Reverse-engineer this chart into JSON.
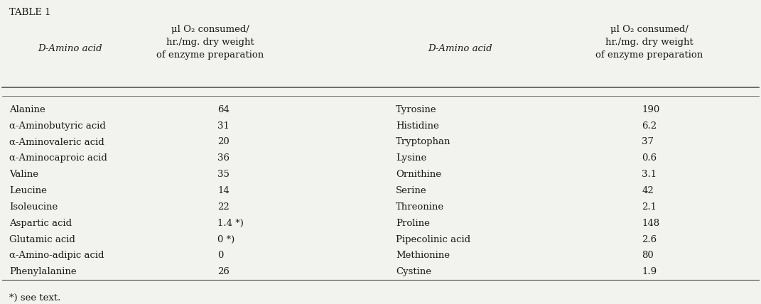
{
  "title": "TABLE 1",
  "col1_header1": "D-Amino acid",
  "col1_header2": "μl O₂ consumed/\nhr./mg. dry weight\nof enzyme preparation",
  "col2_header1": "D-Amino acid",
  "col2_header2": "μl O₂ consumed/\nhr./mg. dry weight\nof enzyme preparation",
  "left_rows": [
    [
      "Alanine",
      "64"
    ],
    [
      "α-Aminobutyric acid",
      "31"
    ],
    [
      "α-Aminovaleric acid",
      "20"
    ],
    [
      "α-Aminocaproic acid",
      "36"
    ],
    [
      "Valine",
      "35"
    ],
    [
      "Leucine",
      "14"
    ],
    [
      "Isoleucine",
      "22"
    ],
    [
      "Aspartic acid",
      "1.4 *)"
    ],
    [
      "Glutamic acid",
      "0 *)"
    ],
    [
      "α-Amino-adipic acid",
      "0"
    ],
    [
      "Phenylalanine",
      "26"
    ]
  ],
  "right_rows": [
    [
      "Tyrosine",
      "190"
    ],
    [
      "Histidine",
      "6.2"
    ],
    [
      "Tryptophan",
      "37"
    ],
    [
      "Lysine",
      "0.6"
    ],
    [
      "Ornithine",
      "3.1"
    ],
    [
      "Serine",
      "42"
    ],
    [
      "Threonine",
      "2.1"
    ],
    [
      "Proline",
      "148"
    ],
    [
      "Pipecolinic acid",
      "2.6"
    ],
    [
      "Methionine",
      "80"
    ],
    [
      "Cystine",
      "1.9"
    ]
  ],
  "footnote": "*) see text.",
  "bg_color": "#f2f2ee",
  "text_color": "#1a1a1a",
  "header_line_color": "#555555",
  "font_size": 9.5,
  "header_font_size": 9.5,
  "title_font_size": 9.5
}
